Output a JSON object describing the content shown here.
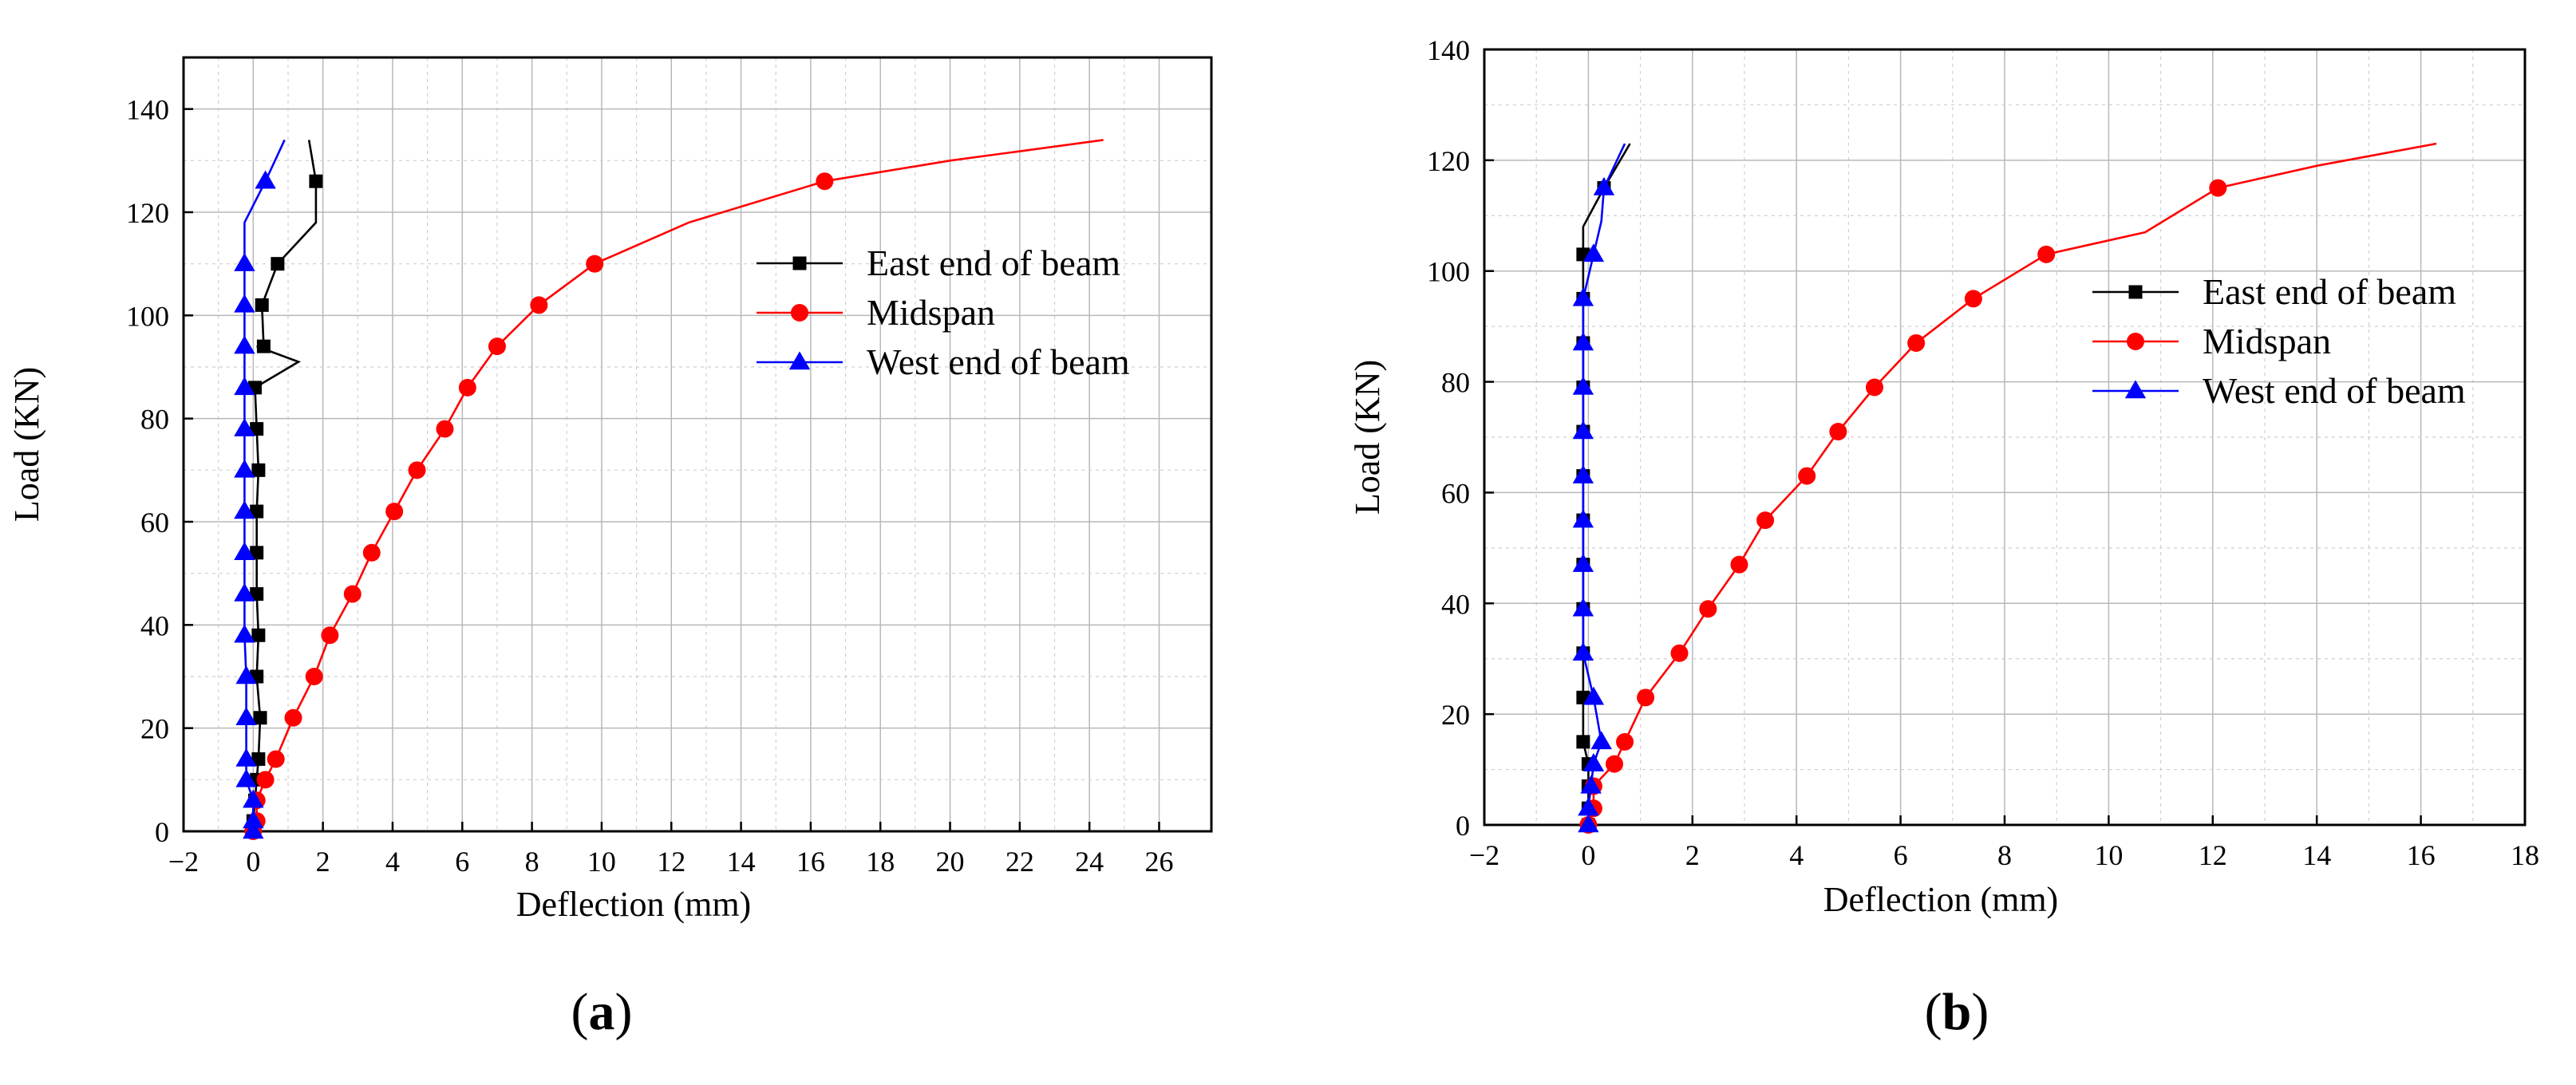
{
  "chart_data": [
    {
      "type": "line",
      "panel_label": "(a)",
      "xlabel": "Deflection (mm)",
      "ylabel": "Load (KN)",
      "xlim": [
        -2,
        27.5
      ],
      "ylim": [
        0,
        150
      ],
      "xticks": [
        -2,
        0,
        2,
        4,
        6,
        8,
        10,
        12,
        14,
        16,
        18,
        20,
        22,
        24,
        26
      ],
      "yticks": [
        0,
        20,
        40,
        60,
        80,
        100,
        120,
        140
      ],
      "grid": true,
      "legend_position": "right-middle",
      "series": [
        {
          "name": "East end of beam",
          "color": "#000000",
          "marker": "square",
          "x": [
            0.0,
            0.0,
            0.05,
            0.1,
            0.15,
            0.2,
            0.1,
            0.15,
            0.1,
            0.1,
            0.1,
            0.15,
            0.1,
            0.05,
            1.3,
            0.1,
            0.3,
            0.25,
            0.7,
            1.8,
            1.8,
            1.6
          ],
          "y": [
            0,
            2,
            6,
            10,
            14,
            22,
            30,
            38,
            46,
            54,
            62,
            70,
            78,
            86,
            91,
            94,
            94,
            102,
            110,
            118,
            126,
            134
          ],
          "marked": [
            true,
            true,
            true,
            true,
            true,
            true,
            true,
            true,
            true,
            true,
            true,
            true,
            true,
            true,
            false,
            false,
            true,
            true,
            true,
            false,
            true,
            false
          ]
        },
        {
          "name": "Midspan",
          "color": "#ff0000",
          "marker": "circle",
          "x": [
            0.0,
            0.1,
            0.1,
            0.35,
            0.65,
            1.15,
            1.75,
            2.2,
            2.85,
            3.4,
            4.05,
            4.7,
            5.5,
            6.15,
            7.0,
            8.2,
            9.8,
            12.5,
            16.4,
            20.0,
            24.4
          ],
          "y": [
            0,
            2,
            6,
            10,
            14,
            22,
            30,
            38,
            46,
            54,
            62,
            70,
            78,
            86,
            94,
            102,
            110,
            118,
            126,
            130,
            134
          ],
          "marked": [
            true,
            true,
            true,
            true,
            true,
            true,
            true,
            true,
            true,
            true,
            true,
            true,
            true,
            true,
            true,
            true,
            true,
            false,
            true,
            false,
            false
          ]
        },
        {
          "name": "West end of beam",
          "color": "#0000ff",
          "marker": "triangle",
          "x": [
            0.0,
            0.0,
            0.0,
            -0.2,
            -0.2,
            -0.2,
            -0.2,
            -0.25,
            -0.25,
            -0.25,
            -0.25,
            -0.25,
            -0.25,
            -0.25,
            -0.25,
            -0.25,
            -0.25,
            -0.25,
            0.35,
            0.9
          ],
          "y": [
            0,
            2,
            6,
            10,
            14,
            22,
            30,
            38,
            46,
            54,
            62,
            70,
            78,
            86,
            94,
            102,
            110,
            118,
            126,
            134
          ],
          "marked": [
            true,
            true,
            true,
            true,
            true,
            true,
            true,
            true,
            true,
            true,
            true,
            true,
            true,
            true,
            true,
            true,
            true,
            false,
            true,
            false
          ]
        }
      ]
    },
    {
      "type": "line",
      "panel_label": "(b)",
      "xlabel": "Deflection (mm)",
      "ylabel": "Load (KN)",
      "xlim": [
        -2,
        18
      ],
      "ylim": [
        0,
        140
      ],
      "xticks": [
        -2,
        0,
        2,
        4,
        6,
        8,
        10,
        12,
        14,
        16,
        18
      ],
      "yticks": [
        0,
        20,
        40,
        60,
        80,
        100,
        120,
        140
      ],
      "grid": true,
      "legend_position": "right-middle",
      "series": [
        {
          "name": "East end of beam",
          "color": "#000000",
          "marker": "square",
          "x": [
            0.0,
            0.0,
            0.0,
            0.0,
            -0.1,
            -0.1,
            -0.1,
            -0.1,
            -0.1,
            -0.1,
            -0.1,
            -0.1,
            -0.1,
            -0.1,
            -0.1,
            -0.1,
            -0.1,
            0.3,
            0.8
          ],
          "y": [
            0,
            3,
            7,
            11,
            15,
            23,
            31,
            39,
            47,
            55,
            63,
            71,
            79,
            87,
            95,
            103,
            108,
            115,
            123
          ],
          "marked": [
            true,
            true,
            true,
            true,
            true,
            true,
            true,
            true,
            true,
            true,
            true,
            true,
            true,
            true,
            true,
            true,
            false,
            true,
            false
          ]
        },
        {
          "name": "Midspan",
          "color": "#ff0000",
          "marker": "circle",
          "x": [
            0.0,
            0.1,
            0.1,
            0.5,
            0.7,
            1.1,
            1.75,
            2.3,
            2.9,
            3.4,
            4.2,
            4.8,
            5.5,
            6.3,
            7.4,
            8.8,
            10.7,
            12.1,
            14.0,
            16.3
          ],
          "y": [
            0,
            3,
            7,
            11,
            15,
            23,
            31,
            39,
            47,
            55,
            63,
            71,
            79,
            87,
            95,
            103,
            107,
            115,
            119,
            123
          ],
          "marked": [
            true,
            true,
            true,
            true,
            true,
            true,
            true,
            true,
            true,
            true,
            true,
            true,
            true,
            true,
            true,
            true,
            false,
            true,
            false,
            false
          ]
        },
        {
          "name": "West end of beam",
          "color": "#0000ff",
          "marker": "triangle",
          "x": [
            0.0,
            0.0,
            0.05,
            0.1,
            0.25,
            0.1,
            -0.1,
            -0.1,
            -0.1,
            -0.1,
            -0.1,
            -0.1,
            -0.1,
            -0.1,
            -0.1,
            0.1,
            0.25,
            0.3,
            0.7
          ],
          "y": [
            0,
            3,
            7,
            11,
            15,
            23,
            31,
            39,
            47,
            55,
            63,
            71,
            79,
            87,
            95,
            103,
            109,
            115,
            123
          ],
          "marked": [
            true,
            true,
            true,
            true,
            true,
            true,
            true,
            true,
            true,
            true,
            true,
            true,
            true,
            true,
            true,
            true,
            false,
            true,
            false
          ]
        }
      ]
    }
  ]
}
